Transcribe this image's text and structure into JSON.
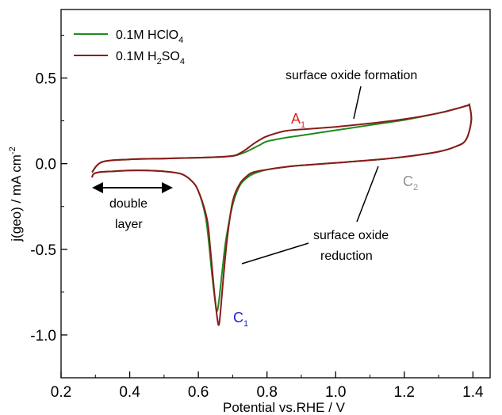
{
  "chart_data": {
    "type": "line",
    "xlabel": "Potential vs.RHE / V",
    "ylabel_main": "j(geo) / mA cm",
    "ylabel_sup": "-2",
    "xlim": [
      0.2,
      1.45
    ],
    "ylim": [
      -1.25,
      0.9
    ],
    "xticks": [
      "0.2",
      "0.4",
      "0.6",
      "0.8",
      "1.0",
      "1.2",
      "1.4"
    ],
    "yticks": [
      "0.5",
      "0.0",
      "-0.5",
      "-1.0"
    ],
    "grid": false,
    "legend_position": "top-left",
    "series": [
      {
        "name_main": "0.1M HClO",
        "name_sub": "4",
        "color": "#1e8c1e",
        "anodic": {
          "x": [
            0.29,
            0.32,
            0.4,
            0.5,
            0.6,
            0.65,
            0.7,
            0.72,
            0.74,
            0.76,
            0.78,
            0.8,
            0.85,
            0.9,
            1.0,
            1.1,
            1.2,
            1.3,
            1.35,
            1.385
          ],
          "y": [
            -0.05,
            0.01,
            0.025,
            0.03,
            0.035,
            0.038,
            0.045,
            0.055,
            0.07,
            0.09,
            0.11,
            0.13,
            0.15,
            0.165,
            0.195,
            0.225,
            0.255,
            0.295,
            0.32,
            0.34
          ]
        },
        "cathodic": {
          "x": [
            1.39,
            1.395,
            1.38,
            1.35,
            1.3,
            1.2,
            1.1,
            1.0,
            0.9,
            0.85,
            0.8,
            0.76,
            0.74,
            0.72,
            0.7,
            0.68,
            0.67,
            0.66,
            0.655,
            0.65,
            0.64,
            0.63,
            0.62,
            0.6,
            0.58,
            0.55,
            0.5,
            0.45,
            0.4,
            0.35,
            0.31,
            0.295,
            0.29
          ],
          "y": [
            0.34,
            0.25,
            0.14,
            0.1,
            0.07,
            0.04,
            0.02,
            0.005,
            -0.01,
            -0.02,
            -0.035,
            -0.06,
            -0.085,
            -0.13,
            -0.24,
            -0.45,
            -0.62,
            -0.8,
            -0.86,
            -0.82,
            -0.65,
            -0.45,
            -0.3,
            -0.16,
            -0.1,
            -0.06,
            -0.045,
            -0.04,
            -0.04,
            -0.045,
            -0.05,
            -0.06,
            -0.08
          ]
        }
      },
      {
        "name_main": "0.1M H",
        "name_sub1": "2",
        "name_mid": "SO",
        "name_sub2": "4",
        "color": "#8b1a1a",
        "anodic": {
          "x": [
            0.29,
            0.32,
            0.4,
            0.5,
            0.6,
            0.65,
            0.7,
            0.72,
            0.74,
            0.76,
            0.78,
            0.8,
            0.85,
            0.9,
            1.0,
            1.1,
            1.2,
            1.3,
            1.35,
            1.385
          ],
          "y": [
            -0.05,
            0.01,
            0.025,
            0.03,
            0.035,
            0.038,
            0.045,
            0.06,
            0.085,
            0.115,
            0.14,
            0.16,
            0.19,
            0.2,
            0.215,
            0.235,
            0.26,
            0.295,
            0.32,
            0.34
          ]
        },
        "cathodic": {
          "x": [
            1.39,
            1.395,
            1.38,
            1.35,
            1.3,
            1.2,
            1.1,
            1.0,
            0.9,
            0.85,
            0.8,
            0.76,
            0.74,
            0.72,
            0.7,
            0.685,
            0.675,
            0.665,
            0.66,
            0.655,
            0.645,
            0.635,
            0.625,
            0.6,
            0.58,
            0.55,
            0.5,
            0.45,
            0.4,
            0.35,
            0.31,
            0.295,
            0.29
          ],
          "y": [
            0.34,
            0.25,
            0.14,
            0.1,
            0.07,
            0.04,
            0.02,
            0.005,
            -0.01,
            -0.02,
            -0.035,
            -0.05,
            -0.075,
            -0.12,
            -0.22,
            -0.42,
            -0.62,
            -0.85,
            -0.94,
            -0.9,
            -0.72,
            -0.5,
            -0.32,
            -0.16,
            -0.1,
            -0.06,
            -0.045,
            -0.04,
            -0.04,
            -0.045,
            -0.05,
            -0.06,
            -0.08
          ]
        }
      }
    ],
    "annotations": {
      "oxide_formation": "surface oxide formation",
      "oxide_reduction_1": "surface oxide",
      "oxide_reduction_2": "reduction",
      "double_layer_1": "double",
      "double_layer_2": "layer",
      "A1_main": "A",
      "A1_sub": "1",
      "A1_color": "#e02020",
      "C1_main": "C",
      "C1_sub": "1",
      "C1_color": "#1f1fd0",
      "C2_main": "C",
      "C2_sub": "2",
      "C2_color": "#909090"
    }
  }
}
